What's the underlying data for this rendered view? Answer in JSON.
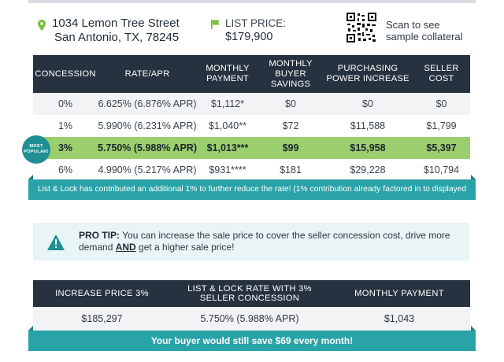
{
  "colors": {
    "dark_header": "#26323f",
    "teal": "#2aa3a8",
    "highlight": "#9bcf6d",
    "green_icon": "#7cbf3d"
  },
  "header": {
    "address_line1": "1034 Lemon Tree Street",
    "address_line2": "San Antonio, TX, 78245",
    "list_price_label": "LIST PRICE:",
    "list_price_value": "$179,900",
    "scan_line1": "Scan to see",
    "scan_line2": "sample collateral",
    "icons": {
      "location": "map-pin-icon",
      "price": "flag-icon",
      "qr": "qr-code-icon"
    }
  },
  "concession_table": {
    "columns": [
      {
        "line1": "CONCESSION",
        "line2": ""
      },
      {
        "line1": "RATE/APR",
        "line2": ""
      },
      {
        "line1": "MONTHLY",
        "line2": "PAYMENT"
      },
      {
        "line1": "MONTHLY",
        "line2": "BUYER SAVINGS"
      },
      {
        "line1": "PURCHASING",
        "line2": "POWER INCREASE"
      },
      {
        "line1": "SELLER",
        "line2": "COST"
      }
    ],
    "rows": [
      {
        "concession": "0%",
        "rate": "6.625% (6.876% APR)",
        "payment": "$1,112*",
        "savings": "$0",
        "power": "$0",
        "cost": "$0"
      },
      {
        "concession": "1%",
        "rate": "5.990% (6.231% APR)",
        "payment": "$1,040**",
        "savings": "$72",
        "power": "$11,588",
        "cost": "$1,799"
      },
      {
        "concession": "3%",
        "rate": "5.750% (5.988% APR)",
        "payment": "$1,013***",
        "savings": "$99",
        "power": "$15,958",
        "cost": "$5,397"
      },
      {
        "concession": "6%",
        "rate": "4.990% (5.217% APR)",
        "payment": "$931****",
        "savings": "$181",
        "power": "$29,228",
        "cost": "$10,794"
      }
    ],
    "badge_line1": "MOST",
    "badge_line2": "POPULAR!",
    "footer_note": "List & Lock has contributed an additional 1% to further reduce the rate! (1% contribution already factored in to displayed rates)"
  },
  "pro_tip": {
    "label": "PRO TIP:",
    "text_part1": " You can increase the sale price to cover the seller concession cost, drive more demand ",
    "text_bold": "AND",
    "text_part2": " get a higher sale price!",
    "icon": "warning-icon"
  },
  "increase_table": {
    "headers": [
      "INCREASE PRICE 3%",
      "LIST & LOCK RATE WITH 3% SELLER CONCESSION",
      "MONTHLY PAYMENT"
    ],
    "row": [
      "$185,297",
      "5.750% (5.988% APR)",
      "$1,043"
    ],
    "footer_note": "Your buyer would still save $69 every month!"
  }
}
